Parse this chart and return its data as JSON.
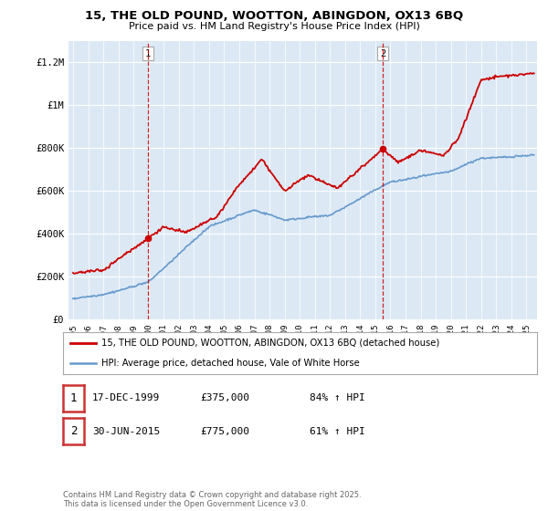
{
  "title": "15, THE OLD POUND, WOOTTON, ABINGDON, OX13 6BQ",
  "subtitle": "Price paid vs. HM Land Registry's House Price Index (HPI)",
  "legend_line1": "15, THE OLD POUND, WOOTTON, ABINGDON, OX13 6BQ (detached house)",
  "legend_line2": "HPI: Average price, detached house, Vale of White Horse",
  "marker1_label": "1",
  "marker1_date": "17-DEC-1999",
  "marker1_price": "£375,000",
  "marker1_hpi": "84% ↑ HPI",
  "marker2_label": "2",
  "marker2_date": "30-JUN-2015",
  "marker2_price": "£775,000",
  "marker2_hpi": "61% ↑ HPI",
  "footer": "Contains HM Land Registry data © Crown copyright and database right 2025.\nThis data is licensed under the Open Government Licence v3.0.",
  "ylim": [
    0,
    1300000
  ],
  "yticks": [
    0,
    200000,
    400000,
    600000,
    800000,
    1000000,
    1200000
  ],
  "ytick_labels": [
    "£0",
    "£200K",
    "£400K",
    "£600K",
    "£800K",
    "£1M",
    "£1.2M"
  ],
  "plot_background": "#dce9f5",
  "grid_color": "#ffffff",
  "red_color": "#cc0000",
  "blue_color": "#6699cc",
  "marker1_x": 1999.96,
  "marker2_x": 2015.5,
  "xmin": 1994.7,
  "xmax": 2025.7
}
